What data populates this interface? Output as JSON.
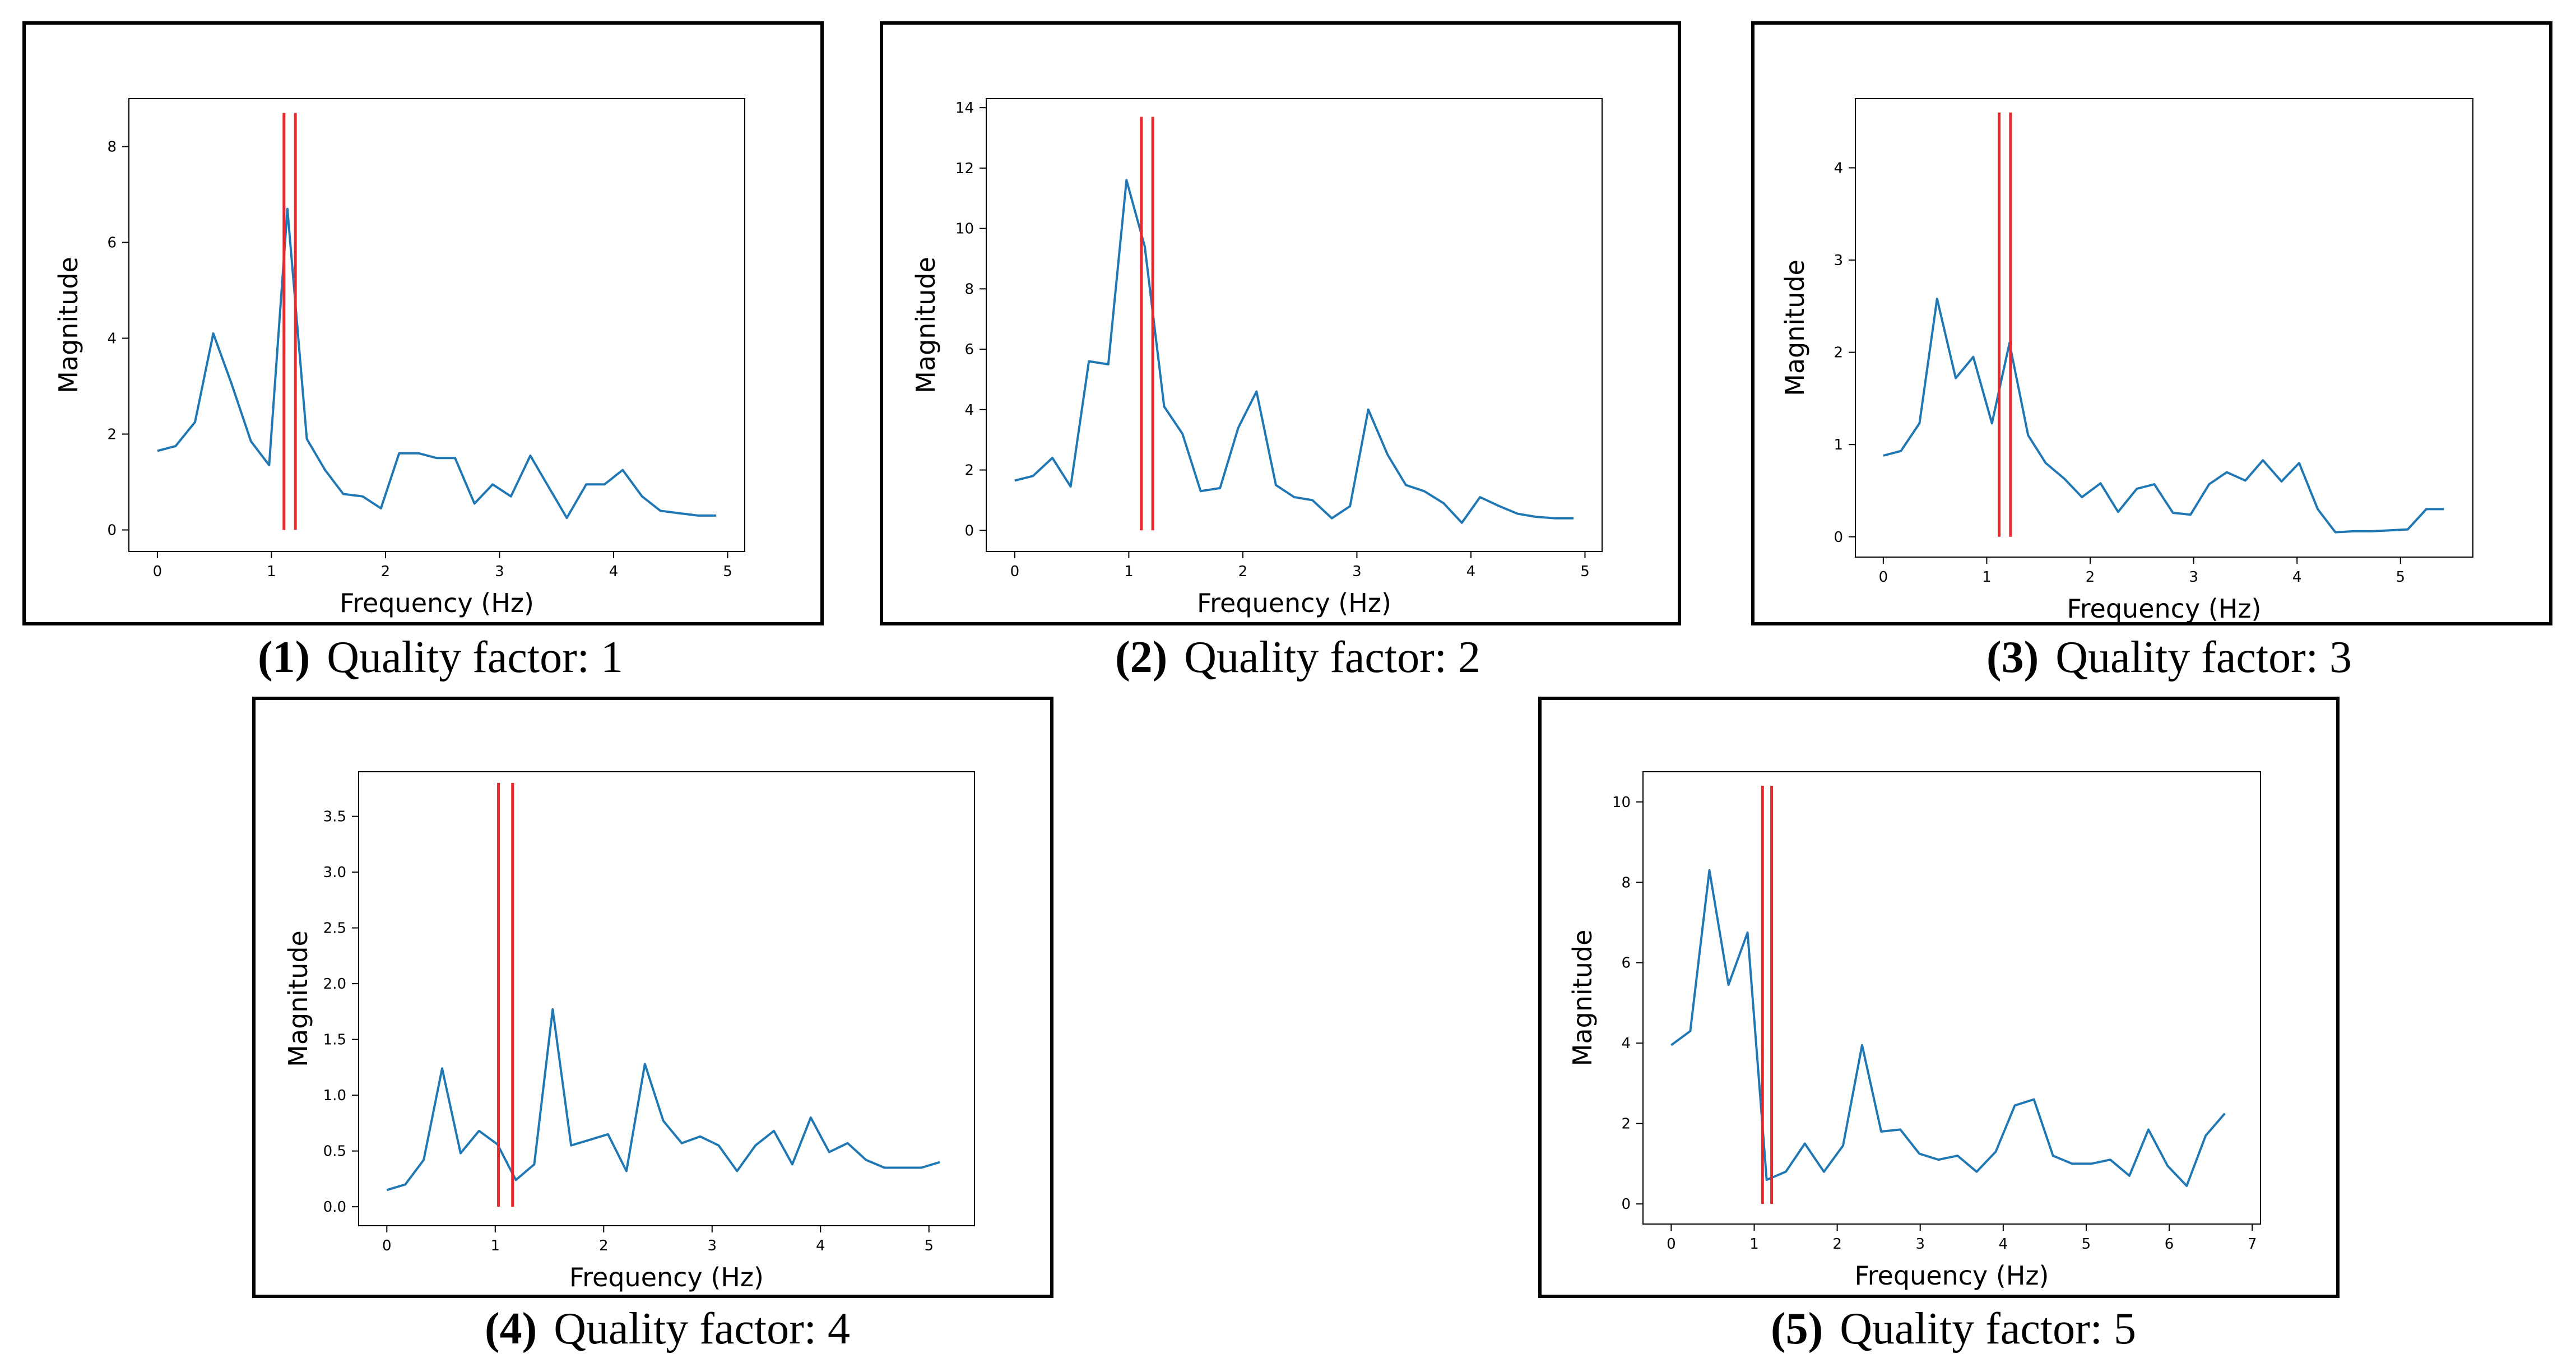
{
  "colors": {
    "line": "#1f77b4",
    "marker": "#e8282b",
    "frame": "#000000"
  },
  "chart_data": [
    {
      "type": "line",
      "label": "(1)",
      "title": "Quality factor: 1",
      "xlabel": "Frequency (Hz)",
      "ylabel": "Magnitude",
      "xlim": [
        -0.25,
        5.15
      ],
      "ylim": [
        -0.45,
        9.0
      ],
      "xticks": [
        0,
        1,
        2,
        3,
        4,
        5
      ],
      "yticks": [
        0,
        2,
        4,
        6,
        8
      ],
      "x": [
        0,
        0.16,
        0.33,
        0.49,
        0.65,
        0.82,
        0.98,
        1.14,
        1.31,
        1.47,
        1.63,
        1.8,
        1.96,
        2.12,
        2.29,
        2.45,
        2.61,
        2.78,
        2.94,
        3.1,
        3.27,
        3.43,
        3.59,
        3.76,
        3.92,
        4.08,
        4.25,
        4.41,
        4.57,
        4.74,
        4.9
      ],
      "y": [
        1.65,
        1.75,
        2.25,
        4.1,
        3.05,
        1.85,
        1.35,
        6.7,
        1.9,
        1.25,
        0.75,
        0.7,
        0.45,
        1.6,
        1.6,
        1.5,
        1.5,
        0.55,
        0.95,
        0.7,
        1.55,
        0.9,
        0.25,
        0.95,
        0.95,
        1.25,
        0.7,
        0.4,
        0.35,
        0.3,
        0.3
      ],
      "markers": [
        1.11,
        1.21
      ],
      "marker_range": [
        0,
        8.7
      ]
    },
    {
      "type": "line",
      "label": "(2)",
      "title": "Quality factor: 2",
      "xlabel": "Frequency (Hz)",
      "ylabel": "Magnitude",
      "xlim": [
        -0.25,
        5.15
      ],
      "ylim": [
        -0.7,
        14.3
      ],
      "xticks": [
        0,
        1,
        2,
        3,
        4,
        5
      ],
      "yticks": [
        0,
        2,
        4,
        6,
        8,
        10,
        12,
        14
      ],
      "x": [
        0,
        0.16,
        0.33,
        0.49,
        0.65,
        0.82,
        0.98,
        1.14,
        1.31,
        1.47,
        1.63,
        1.8,
        1.96,
        2.12,
        2.29,
        2.45,
        2.61,
        2.78,
        2.94,
        3.1,
        3.27,
        3.43,
        3.59,
        3.76,
        3.92,
        4.08,
        4.25,
        4.41,
        4.57,
        4.74,
        4.9
      ],
      "y": [
        1.65,
        1.8,
        2.4,
        1.45,
        5.6,
        5.5,
        11.6,
        9.4,
        4.1,
        3.2,
        1.3,
        1.4,
        3.4,
        4.6,
        1.5,
        1.1,
        1.0,
        0.4,
        0.8,
        4.0,
        2.5,
        1.5,
        1.3,
        0.9,
        0.25,
        1.1,
        0.8,
        0.55,
        0.45,
        0.4,
        0.4
      ],
      "markers": [
        1.11,
        1.21
      ],
      "marker_range": [
        0,
        13.7
      ]
    },
    {
      "type": "line",
      "label": "(3)",
      "title": "Quality factor: 3",
      "xlabel": "Frequency (Hz)",
      "ylabel": "Magnitude",
      "xlim": [
        -0.27,
        5.7
      ],
      "ylim": [
        -0.22,
        4.75
      ],
      "xticks": [
        0,
        1,
        2,
        3,
        4,
        5
      ],
      "yticks": [
        0,
        1,
        2,
        3,
        4
      ],
      "x": [
        0,
        0.17,
        0.35,
        0.52,
        0.7,
        0.87,
        1.05,
        1.22,
        1.4,
        1.57,
        1.75,
        1.92,
        2.1,
        2.27,
        2.45,
        2.62,
        2.8,
        2.97,
        3.15,
        3.32,
        3.5,
        3.67,
        3.85,
        4.02,
        4.2,
        4.37,
        4.55,
        4.72,
        4.9,
        5.07,
        5.25,
        5.42
      ],
      "y": [
        0.88,
        0.93,
        1.23,
        2.58,
        1.72,
        1.95,
        1.23,
        2.1,
        1.1,
        0.8,
        0.63,
        0.43,
        0.58,
        0.27,
        0.52,
        0.57,
        0.26,
        0.24,
        0.57,
        0.7,
        0.61,
        0.83,
        0.6,
        0.8,
        0.3,
        0.05,
        0.06,
        0.06,
        0.07,
        0.08,
        0.3,
        0.3
      ],
      "markers": [
        1.12,
        1.23
      ],
      "marker_range": [
        0,
        4.6
      ]
    },
    {
      "type": "line",
      "label": "(4)",
      "title": "Quality factor: 4",
      "xlabel": "Frequency (Hz)",
      "ylabel": "Magnitude",
      "xlim": [
        -0.26,
        5.42
      ],
      "ylim": [
        -0.17,
        3.9
      ],
      "xticks": [
        0,
        1,
        2,
        3,
        4,
        5
      ],
      "yticks": [
        0.0,
        0.5,
        1.0,
        1.5,
        2.0,
        2.5,
        3.0,
        3.5
      ],
      "ytick_labels": [
        "0.0",
        "0.5",
        "1.0",
        "1.5",
        "2.0",
        "2.5",
        "3.0",
        "3.5"
      ],
      "x": [
        0,
        0.17,
        0.34,
        0.51,
        0.68,
        0.85,
        1.02,
        1.19,
        1.36,
        1.53,
        1.7,
        1.87,
        2.04,
        2.21,
        2.38,
        2.55,
        2.72,
        2.89,
        3.06,
        3.23,
        3.4,
        3.57,
        3.74,
        3.91,
        4.08,
        4.25,
        4.42,
        4.59,
        4.76,
        4.93,
        5.1
      ],
      "y": [
        0.15,
        0.2,
        0.42,
        1.24,
        0.48,
        0.68,
        0.56,
        0.24,
        0.38,
        1.77,
        0.55,
        0.6,
        0.65,
        0.32,
        1.28,
        0.77,
        0.57,
        0.63,
        0.55,
        0.32,
        0.55,
        0.68,
        0.38,
        0.8,
        0.49,
        0.57,
        0.42,
        0.35,
        0.35,
        0.35,
        0.4
      ],
      "markers": [
        1.03,
        1.16
      ],
      "marker_range": [
        0,
        3.8
      ]
    },
    {
      "type": "line",
      "label": "(5)",
      "title": "Quality factor: 5",
      "xlabel": "Frequency (Hz)",
      "ylabel": "Magnitude",
      "xlim": [
        -0.34,
        7.1
      ],
      "ylim": [
        -0.5,
        10.75
      ],
      "xticks": [
        0,
        1,
        2,
        3,
        4,
        5,
        6,
        7
      ],
      "yticks": [
        0,
        2,
        4,
        6,
        8,
        10
      ],
      "x": [
        0,
        0.23,
        0.46,
        0.69,
        0.92,
        1.15,
        1.38,
        1.61,
        1.84,
        2.07,
        2.3,
        2.53,
        2.76,
        2.99,
        3.22,
        3.45,
        3.68,
        3.91,
        4.14,
        4.37,
        4.6,
        4.83,
        5.06,
        5.29,
        5.52,
        5.75,
        5.98,
        6.21,
        6.44,
        6.67
      ],
      "y": [
        3.95,
        4.3,
        8.3,
        5.45,
        6.75,
        0.6,
        0.8,
        1.5,
        0.8,
        1.45,
        3.95,
        1.8,
        1.85,
        1.25,
        1.1,
        1.2,
        0.8,
        1.3,
        2.45,
        2.6,
        1.2,
        1.0,
        1.0,
        1.1,
        0.7,
        1.85,
        0.95,
        0.45,
        1.7,
        2.25
      ],
      "markers": [
        1.1,
        1.21
      ],
      "marker_range": [
        0,
        10.4
      ]
    }
  ]
}
